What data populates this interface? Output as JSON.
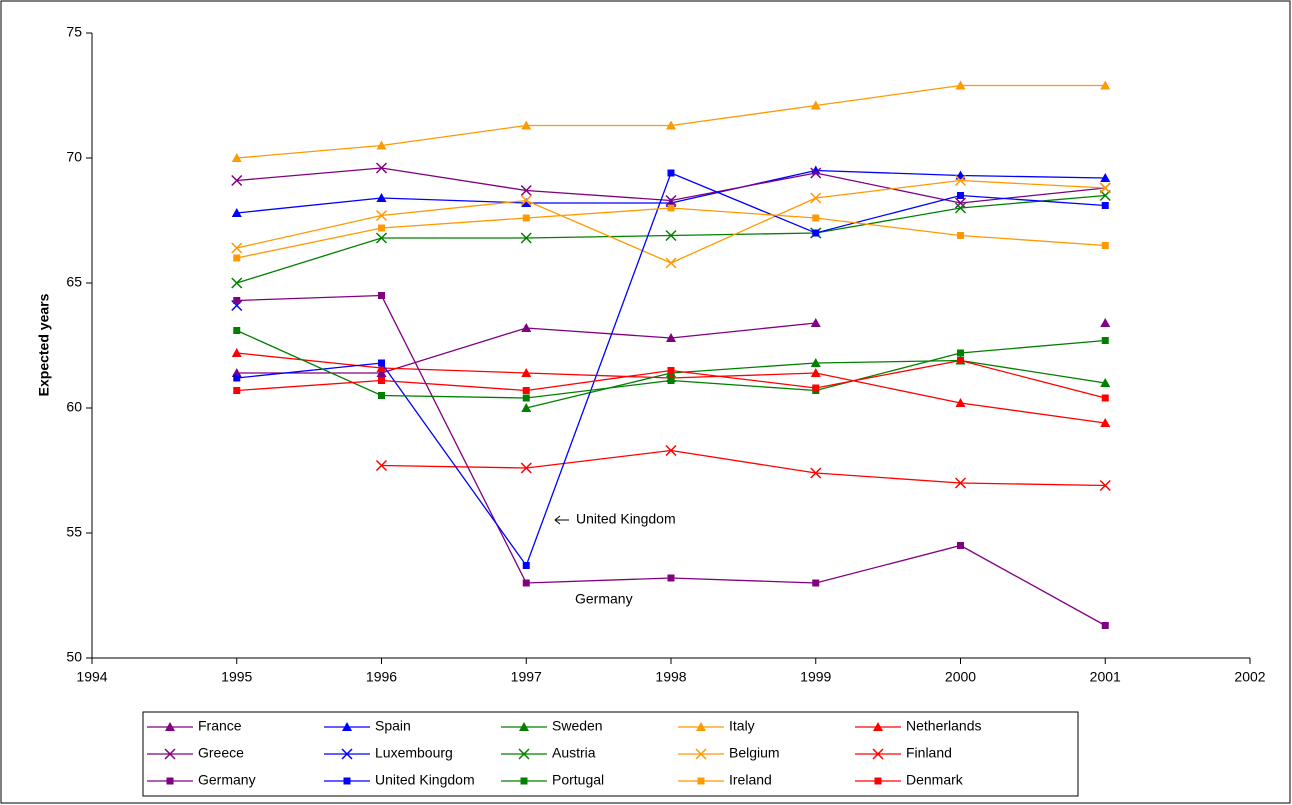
{
  "chart_data": {
    "type": "line",
    "y_label": "Expected years",
    "x": [
      1995,
      1996,
      1997,
      1998,
      1999,
      2000,
      2001
    ],
    "xlim": [
      1994,
      2002
    ],
    "xticks": [
      1994,
      1995,
      1996,
      1997,
      1998,
      1999,
      2000,
      2001,
      2002
    ],
    "ylim": [
      50,
      75
    ],
    "yticks": [
      50,
      55,
      60,
      65,
      70,
      75
    ],
    "annotations": [
      "United Kingdom",
      "Germany"
    ],
    "series": [
      {
        "name": "France",
        "color": "#800080",
        "marker": "triangle",
        "values": [
          61.4,
          61.4,
          63.2,
          62.8,
          63.4,
          null,
          63.4
        ]
      },
      {
        "name": "Spain",
        "color": "#0000ff",
        "marker": "triangle",
        "values": [
          67.8,
          68.4,
          68.2,
          68.2,
          69.5,
          69.3,
          69.2
        ]
      },
      {
        "name": "Sweden",
        "color": "#008000",
        "marker": "triangle",
        "values": [
          null,
          null,
          60.0,
          61.4,
          61.8,
          61.9,
          61.0
        ]
      },
      {
        "name": "Italy",
        "color": "#ff9900",
        "marker": "triangle",
        "values": [
          70.0,
          70.5,
          71.3,
          71.3,
          72.1,
          72.9,
          72.9
        ]
      },
      {
        "name": "Netherlands",
        "color": "#ff0000",
        "marker": "triangle",
        "values": [
          62.2,
          61.6,
          61.4,
          61.2,
          61.4,
          60.2,
          59.4
        ]
      },
      {
        "name": "Greece",
        "color": "#800080",
        "marker": "x",
        "values": [
          69.1,
          69.6,
          68.7,
          68.3,
          69.4,
          68.2,
          68.8
        ]
      },
      {
        "name": "Luxembourg",
        "color": "#0000ff",
        "marker": "x",
        "values": [
          64.1,
          null,
          null,
          null,
          67.0,
          null,
          null
        ]
      },
      {
        "name": "Austria",
        "color": "#008000",
        "marker": "x",
        "values": [
          65.0,
          66.8,
          66.8,
          66.9,
          67.0,
          68.0,
          68.5
        ]
      },
      {
        "name": "Belgium",
        "color": "#ff9900",
        "marker": "x",
        "values": [
          66.4,
          67.7,
          68.3,
          65.8,
          68.4,
          69.1,
          68.8
        ]
      },
      {
        "name": "Finland",
        "color": "#ff0000",
        "marker": "x",
        "values": [
          null,
          57.7,
          57.6,
          58.3,
          57.4,
          57.0,
          56.9
        ]
      },
      {
        "name": "Germany",
        "color": "#800080",
        "marker": "square",
        "values": [
          64.3,
          64.5,
          53.0,
          53.2,
          53.0,
          54.5,
          51.3
        ]
      },
      {
        "name": "United Kingdom",
        "color": "#0000ff",
        "marker": "square",
        "values": [
          61.2,
          61.8,
          53.7,
          69.4,
          67.0,
          68.5,
          68.1
        ]
      },
      {
        "name": "Portugal",
        "color": "#008000",
        "marker": "square",
        "values": [
          63.1,
          60.5,
          60.4,
          61.1,
          60.7,
          62.2,
          62.7
        ]
      },
      {
        "name": "Ireland",
        "color": "#ff9900",
        "marker": "square",
        "values": [
          66.0,
          67.2,
          67.6,
          68.0,
          67.6,
          66.9,
          66.5
        ]
      },
      {
        "name": "Denmark",
        "color": "#ff0000",
        "marker": "square",
        "values": [
          60.7,
          61.1,
          60.7,
          61.5,
          60.8,
          61.9,
          60.4
        ]
      }
    ]
  }
}
